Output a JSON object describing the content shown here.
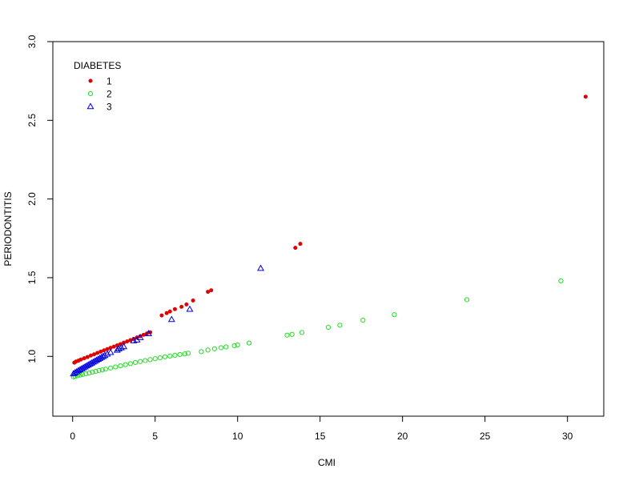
{
  "chart_data": {
    "type": "scatter",
    "title": "",
    "xlabel": "CMI",
    "ylabel": "PERIODONTITIS",
    "xlim": [
      -1.2,
      32.2
    ],
    "ylim": [
      0.62,
      3.0
    ],
    "xticks": [
      0,
      5,
      10,
      15,
      20,
      25,
      30
    ],
    "yticks": [
      1.0,
      1.5,
      2.0,
      2.5,
      3.0
    ],
    "xtick_labels": [
      "0",
      "5",
      "10",
      "15",
      "20",
      "25",
      "30"
    ],
    "ytick_labels": [
      "1.0",
      "1.5",
      "2.0",
      "2.5",
      "3.0"
    ],
    "grid": false,
    "legend": {
      "title": "DIABETES",
      "placement": "top-left",
      "entries": [
        "1",
        "2",
        "3"
      ]
    },
    "series": [
      {
        "name": "1",
        "color": "#e00000",
        "marker": "filled-circle",
        "x": [
          0.1,
          0.2,
          0.35,
          0.5,
          0.7,
          0.9,
          1.1,
          1.3,
          1.5,
          1.7,
          1.9,
          2.1,
          2.3,
          2.5,
          2.7,
          2.9,
          3.1,
          3.3,
          3.5,
          3.7,
          3.9,
          4.1,
          4.3,
          4.5,
          4.7,
          5.4,
          5.7,
          5.9,
          6.2,
          6.6,
          6.9,
          7.3,
          8.2,
          8.4,
          13.5,
          13.8,
          31.1
        ],
        "y": [
          0.96,
          0.967,
          0.973,
          0.98,
          0.988,
          0.996,
          1.005,
          1.013,
          1.022,
          1.03,
          1.038,
          1.046,
          1.054,
          1.062,
          1.07,
          1.078,
          1.087,
          1.095,
          1.103,
          1.111,
          1.12,
          1.128,
          1.137,
          1.145,
          1.153,
          1.26,
          1.275,
          1.285,
          1.3,
          1.315,
          1.33,
          1.355,
          1.41,
          1.42,
          1.69,
          1.715,
          2.65
        ]
      },
      {
        "name": "2",
        "color": "#22dd22",
        "marker": "open-circle",
        "x": [
          0.05,
          0.15,
          0.3,
          0.45,
          0.6,
          0.8,
          1.0,
          1.2,
          1.4,
          1.6,
          1.8,
          2.0,
          2.3,
          2.6,
          2.9,
          3.2,
          3.5,
          3.8,
          4.1,
          4.4,
          4.7,
          5.0,
          5.3,
          5.6,
          5.9,
          6.2,
          6.5,
          6.8,
          7.0,
          7.8,
          8.2,
          8.6,
          9.0,
          9.3,
          9.8,
          10.0,
          10.7,
          13.0,
          13.3,
          13.9,
          15.5,
          16.2,
          17.6,
          19.5,
          23.9,
          29.6
        ],
        "y": [
          0.87,
          0.873,
          0.877,
          0.881,
          0.885,
          0.89,
          0.895,
          0.9,
          0.905,
          0.91,
          0.914,
          0.919,
          0.926,
          0.933,
          0.94,
          0.947,
          0.954,
          0.961,
          0.967,
          0.973,
          0.979,
          0.985,
          0.991,
          0.997,
          1.002,
          1.007,
          1.012,
          1.016,
          1.02,
          1.03,
          1.04,
          1.048,
          1.055,
          1.06,
          1.068,
          1.073,
          1.085,
          1.135,
          1.14,
          1.152,
          1.185,
          1.198,
          1.23,
          1.265,
          1.36,
          1.48
        ]
      },
      {
        "name": "3",
        "color": "#0000dd",
        "marker": "open-triangle",
        "x": [
          0.05,
          0.15,
          0.25,
          0.35,
          0.45,
          0.55,
          0.65,
          0.75,
          0.85,
          0.95,
          1.05,
          1.15,
          1.25,
          1.35,
          1.45,
          1.55,
          1.65,
          1.75,
          1.85,
          1.95,
          2.1,
          2.3,
          2.7,
          2.8,
          2.95,
          3.1,
          3.7,
          3.9,
          4.1,
          4.6,
          6.0,
          7.1,
          11.4
        ],
        "y": [
          0.89,
          0.897,
          0.903,
          0.91,
          0.916,
          0.922,
          0.928,
          0.934,
          0.94,
          0.946,
          0.952,
          0.958,
          0.964,
          0.97,
          0.976,
          0.982,
          0.988,
          0.994,
          1.0,
          1.006,
          1.015,
          1.025,
          1.04,
          1.048,
          1.055,
          1.062,
          1.1,
          1.105,
          1.12,
          1.145,
          1.235,
          1.3,
          1.56
        ]
      }
    ]
  }
}
